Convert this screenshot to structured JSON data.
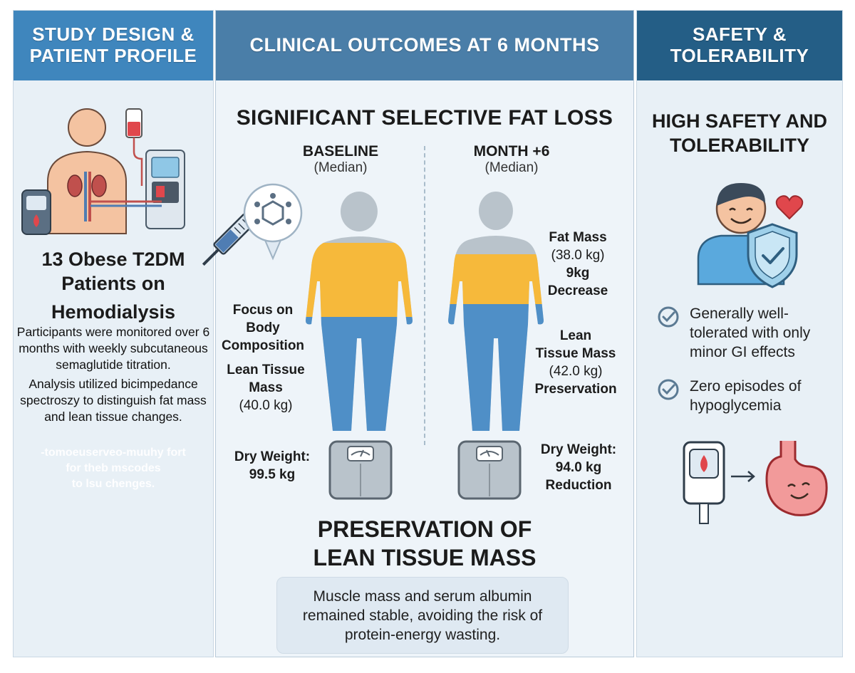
{
  "left": {
    "header": "STUDY DESIGN &\nPATIENT PROFILE",
    "title_line1": "13 Obese T2DM",
    "title_line2": "Patients on",
    "title_line3": "Hemodialysis",
    "para1": "Participants were monitored over 6 months with weekly subcutaneous semaglutide titration.",
    "para2": "Analysis utilized bicimpedance spectroszy to distinguish fat mass and lean tissue changes.",
    "ghost_line1": "-tomoeuserveo-muuhy fort",
    "ghost_line2": "for theb mscodes",
    "ghost_line3": "to lsu chenges."
  },
  "middle": {
    "header": "CLINICAL OUTCOMES AT 6 MONTHS",
    "title": "SIGNIFICANT SELECTIVE FAT LOSS",
    "baseline_head": "BASELINE",
    "baseline_sub": "(Median)",
    "month_head": "MONTH +6",
    "month_sub": "(Median)",
    "focus_label": "Focus on\nBody\nComposition",
    "baseline_lean_label": "Lean Tissue\nMass",
    "baseline_lean_value": "(40.0 kg)",
    "baseline_dry_label": "Dry Weight:",
    "baseline_dry_value": "99.5 kg",
    "month_fat_label": "Fat Mass",
    "month_fat_value": "(38.0 kg)",
    "month_fat_change": "9kg\nDecrease",
    "month_lean_label": "Lean\nTissue Mass",
    "month_lean_value": "(42.0 kg)",
    "month_lean_change": "Preservation",
    "month_dry_label": "Dry Weight:",
    "month_dry_value": "94.0 kg",
    "month_dry_change": "Reduction",
    "lean_title_line1": "PRESERVATION OF",
    "lean_title_line2": "LEAN TISSUE MASS",
    "callout": "Muscle mass and serum albumin remained stable, avoiding the risk of protein-energy wasting."
  },
  "right": {
    "header": "SAFETY &\nTOLERABILITY",
    "title_line1": "HIGH SAFETY AND",
    "title_line2": "TOLERABILITY",
    "checks": [
      "Generally well-tolerated with only minor GI effects",
      "Zero episodes of hypoglycemia"
    ]
  },
  "colors": {
    "fat": "#f6b93b",
    "lean": "#4f8fc7",
    "head": "#b9c3cb",
    "accent": "#3f86bd",
    "dark_header": "#245e86"
  },
  "icons": {
    "patient": "patient-dialysis-icon",
    "glucometer": "glucometer-icon",
    "syringe": "syringe-icon",
    "molecule": "molecule-icon",
    "scale": "bathroom-scale-icon",
    "person": "smiling-person-icon",
    "heart": "heart-icon",
    "shield": "shield-check-icon",
    "check": "check-circle-icon",
    "stomach": "happy-stomach-icon"
  }
}
